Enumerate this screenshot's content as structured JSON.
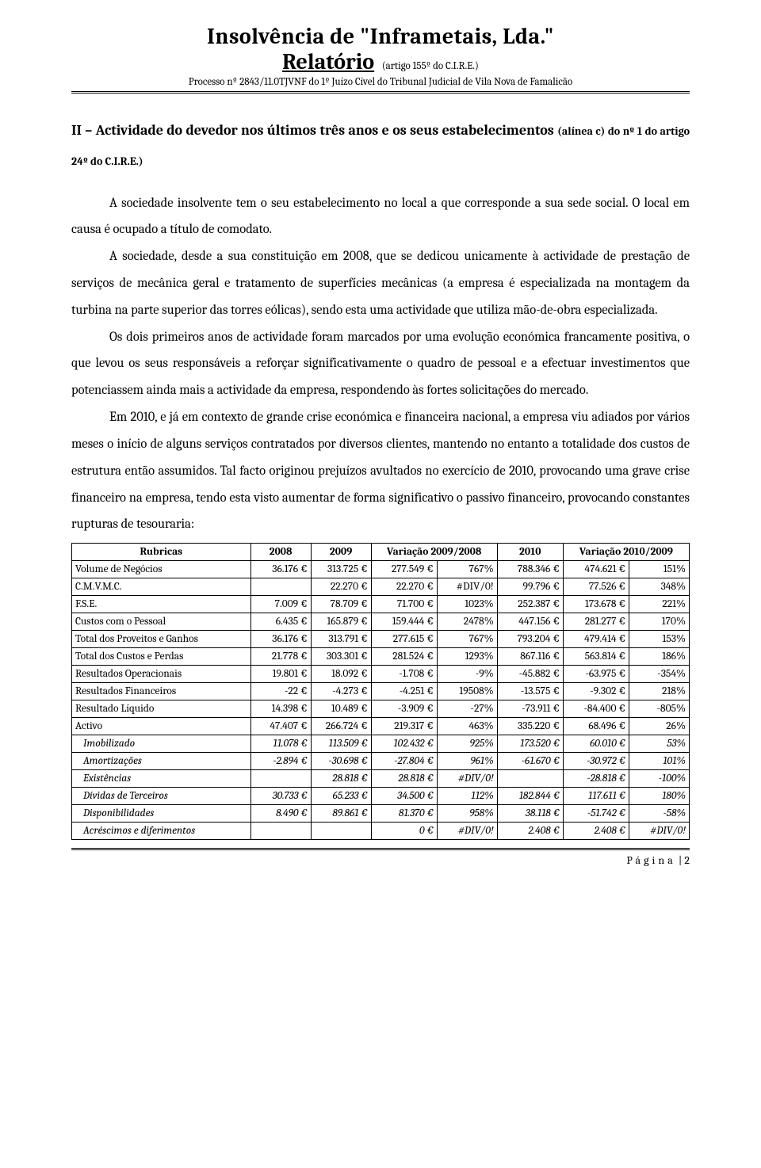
{
  "header": {
    "title_line1": "Insolvência de \"Inframetais, Lda.\"",
    "title_line2": "Relatório",
    "title_sub": "(artigo 155º do C.I.R.E.)",
    "proc": "Processo nº 2843/11.0TJVNF do 1º Juízo Cível do Tribunal Judicial de Vila Nova de Famalicão"
  },
  "section": {
    "roman": "II",
    "sep": " – ",
    "main": "Actividade do devedor nos últimos três anos e os seus estabelecimentos ",
    "small": "(alínea c) do nº 1 do artigo 24º do C.I.R.E.)"
  },
  "paragraphs": [
    "A sociedade insolvente tem o seu estabelecimento no local a que corresponde a sua sede social. O local em causa é ocupado a título de comodato.",
    "A sociedade, desde a sua constituição em 2008, que se dedicou unicamente à actividade de prestação de serviços de mecânica geral e tratamento de superfícies mecânicas (a empresa é especializada na montagem da turbina na parte superior das torres eólicas), sendo esta uma actividade que utiliza mão-de-obra especializada.",
    "Os dois primeiros anos de actividade foram marcados por uma evolução económica francamente positiva, o que levou os seus responsáveis a reforçar significativamente o quadro de pessoal e a efectuar investimentos que potenciassem ainda mais a actividade da empresa, respondendo às fortes solicitações do mercado.",
    "Em 2010, e já em contexto de grande crise económica e financeira nacional, a empresa viu adiados por vários meses o início de alguns serviços contratados por diversos clientes, mantendo no entanto a totalidade dos custos de estrutura então assumidos. Tal facto originou prejuízos avultados no exercício de 2010, provocando uma grave crise financeiro na empresa, tendo esta visto aumentar de forma significativo o passivo financeiro, provocando constantes rupturas de tesouraria:"
  ],
  "table": {
    "headers": [
      "Rubricas",
      "2008",
      "2009",
      "Variação 2009/2008",
      "2010",
      "Variação 2010/2009"
    ],
    "rows": [
      {
        "label": "Volume de Negócios",
        "y2008": "36.176 €",
        "y2009": "313.725 €",
        "varA_val": "277.549 €",
        "varA_pct": "767%",
        "y2010": "788.346 €",
        "varB_val": "474.621 €",
        "varB_pct": "151%",
        "italic": false
      },
      {
        "label": "C.M.V.M.C.",
        "y2008": "",
        "y2009": "22.270 €",
        "varA_val": "22.270 €",
        "varA_pct": "#DIV/0!",
        "y2010": "99.796 €",
        "varB_val": "77.526 €",
        "varB_pct": "348%",
        "italic": false
      },
      {
        "label": "F.S.E.",
        "y2008": "7.009 €",
        "y2009": "78.709 €",
        "varA_val": "71.700 €",
        "varA_pct": "1023%",
        "y2010": "252.387 €",
        "varB_val": "173.678 €",
        "varB_pct": "221%",
        "italic": false
      },
      {
        "label": "Custos com o Pessoal",
        "y2008": "6.435 €",
        "y2009": "165.879 €",
        "varA_val": "159.444 €",
        "varA_pct": "2478%",
        "y2010": "447.156 €",
        "varB_val": "281.277 €",
        "varB_pct": "170%",
        "italic": false
      },
      {
        "label": "Total dos Proveitos e Ganhos",
        "y2008": "36.176 €",
        "y2009": "313.791 €",
        "varA_val": "277.615 €",
        "varA_pct": "767%",
        "y2010": "793.204 €",
        "varB_val": "479.414 €",
        "varB_pct": "153%",
        "italic": false
      },
      {
        "label": "Total dos Custos e Perdas",
        "y2008": "21.778 €",
        "y2009": "303.301 €",
        "varA_val": "281.524 €",
        "varA_pct": "1293%",
        "y2010": "867.116 €",
        "varB_val": "563.814 €",
        "varB_pct": "186%",
        "italic": false
      },
      {
        "label": "Resultados Operacionais",
        "y2008": "19.801 €",
        "y2009": "18.092 €",
        "varA_val": "-1.708 €",
        "varA_pct": "-9%",
        "y2010": "-45.882 €",
        "varB_val": "-63.975 €",
        "varB_pct": "-354%",
        "italic": false
      },
      {
        "label": "Resultados Financeiros",
        "y2008": "-22 €",
        "y2009": "-4.273 €",
        "varA_val": "-4.251 €",
        "varA_pct": "19508%",
        "y2010": "-13.575 €",
        "varB_val": "-9.302 €",
        "varB_pct": "218%",
        "italic": false
      },
      {
        "label": "Resultado Líquido",
        "y2008": "14.398 €",
        "y2009": "10.489 €",
        "varA_val": "-3.909 €",
        "varA_pct": "-27%",
        "y2010": "-73.911 €",
        "varB_val": "-84.400 €",
        "varB_pct": "-805%",
        "italic": false
      },
      {
        "label": "Activo",
        "y2008": "47.407 €",
        "y2009": "266.724 €",
        "varA_val": "219.317 €",
        "varA_pct": "463%",
        "y2010": "335.220 €",
        "varB_val": "68.496 €",
        "varB_pct": "26%",
        "italic": false
      },
      {
        "label": "Imobilizado",
        "y2008": "11.078 €",
        "y2009": "113.509 €",
        "varA_val": "102.432 €",
        "varA_pct": "925%",
        "y2010": "173.520 €",
        "varB_val": "60.010 €",
        "varB_pct": "53%",
        "italic": true
      },
      {
        "label": "Amortizações",
        "y2008": "-2.894 €",
        "y2009": "-30.698 €",
        "varA_val": "-27.804 €",
        "varA_pct": "961%",
        "y2010": "-61.670 €",
        "varB_val": "-30.972 €",
        "varB_pct": "101%",
        "italic": true
      },
      {
        "label": "Existências",
        "y2008": "",
        "y2009": "28.818 €",
        "varA_val": "28.818 €",
        "varA_pct": "#DIV/0!",
        "y2010": "",
        "varB_val": "-28.818 €",
        "varB_pct": "-100%",
        "italic": true
      },
      {
        "label": "Dívidas de Terceiros",
        "y2008": "30.733 €",
        "y2009": "65.233 €",
        "varA_val": "34.500 €",
        "varA_pct": "112%",
        "y2010": "182.844 €",
        "varB_val": "117.611 €",
        "varB_pct": "180%",
        "italic": true
      },
      {
        "label": "Disponibilidades",
        "y2008": "8.490 €",
        "y2009": "89.861 €",
        "varA_val": "81.370 €",
        "varA_pct": "958%",
        "y2010": "38.118 €",
        "varB_val": "-51.742 €",
        "varB_pct": "-58%",
        "italic": true
      },
      {
        "label": "Acréscimos e diferimentos",
        "y2008": "",
        "y2009": "",
        "varA_val": "0 €",
        "varA_pct": "#DIV/0!",
        "y2010": "2.408 €",
        "varB_val": "2.408 €",
        "varB_pct": "#DIV/0!",
        "italic": true
      }
    ]
  },
  "footer": {
    "label": "Página",
    "sep": " | ",
    "num": "2"
  }
}
